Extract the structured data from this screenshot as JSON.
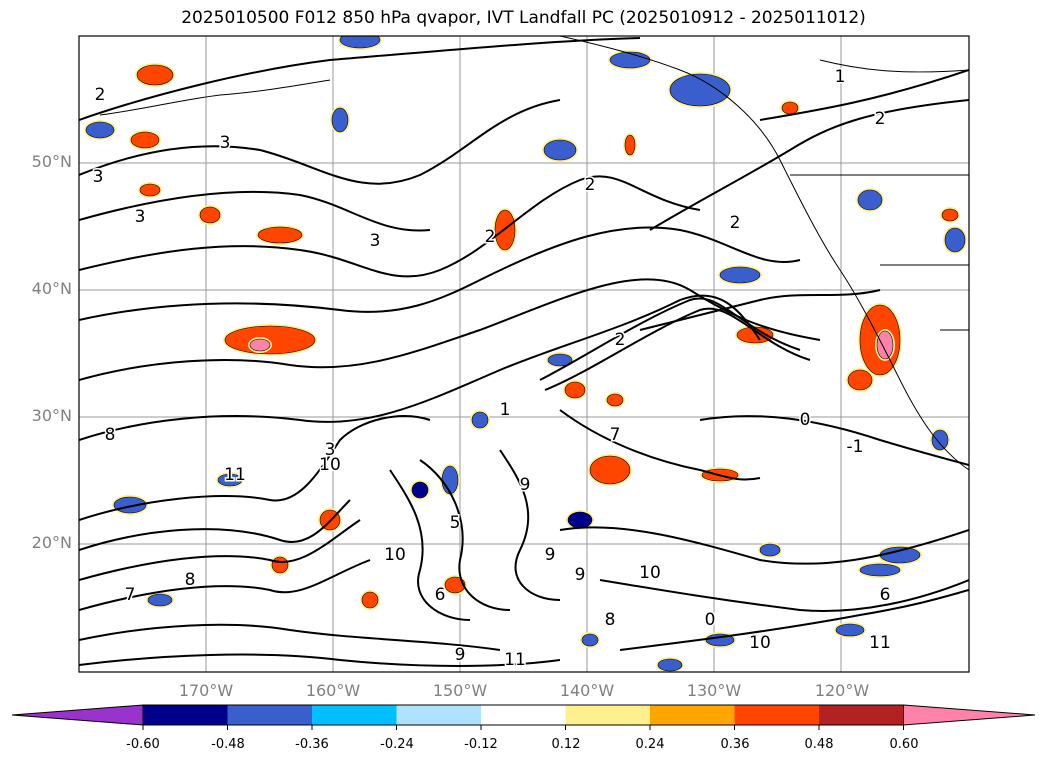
{
  "title": "2025010500 F012 850 hPa qvapor, IVT Landfall PC (2025010912 - 2025011012)",
  "map": {
    "lat_labels": [
      "50°N",
      "40°N",
      "30°N",
      "20°N"
    ],
    "lon_labels": [
      "170°W",
      "160°W",
      "150°W",
      "140°W",
      "130°W",
      "120°W"
    ],
    "contour_labels": [
      "1",
      "2",
      "2",
      "3",
      "3",
      "3",
      "3",
      "2",
      "2",
      "2",
      "1",
      "3",
      "2",
      "0",
      "7",
      "8",
      "9",
      "10",
      "11",
      "10",
      "9",
      "8",
      "7",
      "6",
      "5",
      "10",
      "9",
      "11",
      "11",
      "6",
      "-1",
      "0",
      "8",
      "9",
      "10"
    ]
  },
  "colorbar": {
    "ticks": [
      "-0.60",
      "-0.48",
      "-0.36",
      "-0.24",
      "-0.12",
      "0.12",
      "0.24",
      "0.36",
      "0.48",
      "0.60"
    ],
    "colors": [
      "#9a32cd",
      "#00008b",
      "#3a5fcd",
      "#00bfff",
      "#b0e2ff",
      "#ffffff",
      "#fff08f",
      "#ffa500",
      "#ff4500",
      "#b22222",
      "#ff82ab"
    ],
    "extend": "both"
  },
  "chart_data": {
    "type": "heatmap",
    "title": "2025010500 F012 850 hPa qvapor, IVT Landfall PC (2025010912 - 2025011012)",
    "xlabel": "",
    "ylabel": "",
    "x_ticks": [
      "170°W",
      "160°W",
      "150°W",
      "140°W",
      "130°W",
      "120°W"
    ],
    "y_ticks": [
      "50°N",
      "40°N",
      "30°N",
      "20°N"
    ],
    "color_levels": [
      -0.6,
      -0.48,
      -0.36,
      -0.24,
      -0.12,
      0.12,
      0.24,
      0.36,
      0.48,
      0.6
    ],
    "grid": true,
    "legend": "bottom"
  }
}
